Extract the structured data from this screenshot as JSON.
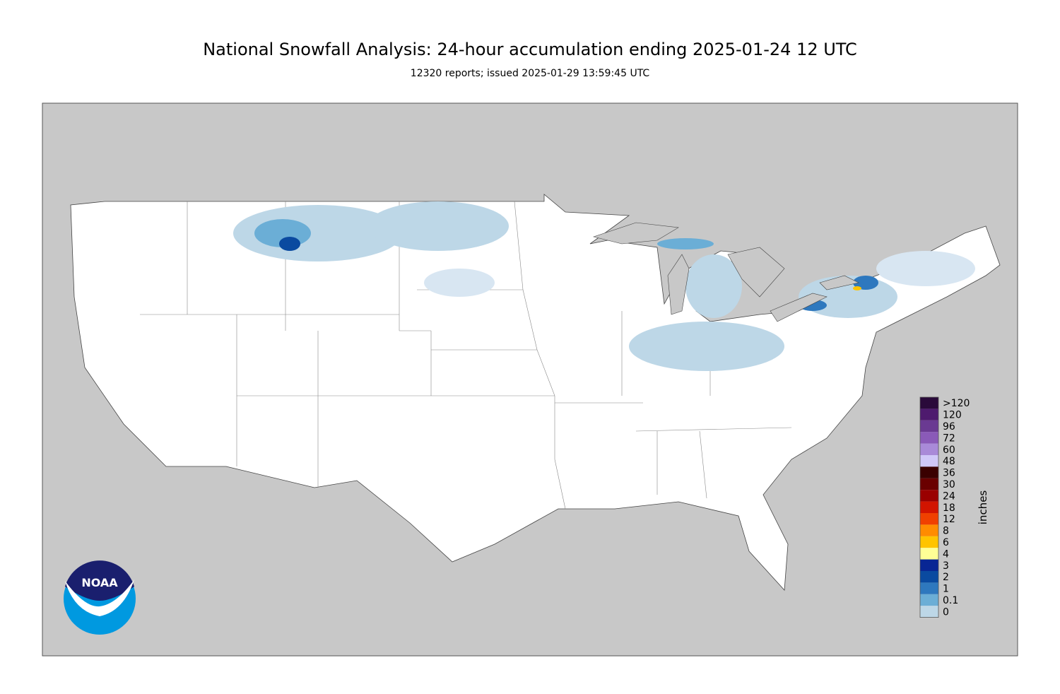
{
  "header": {
    "title": "National Snowfall Analysis: 24-hour accumulation ending 2025-01-24 12 UTC",
    "subtitle": "12320 reports; issued 2025-01-29 13:59:45 UTC"
  },
  "legend": {
    "label": "inches",
    "bins": [
      {
        "label": ">120",
        "color": "#2a0a3a"
      },
      {
        "label": "120",
        "color": "#4e1a6e"
      },
      {
        "label": "96",
        "color": "#6a3a92"
      },
      {
        "label": "72",
        "color": "#8a5ab8"
      },
      {
        "label": "60",
        "color": "#a98ad8"
      },
      {
        "label": "48",
        "color": "#d0c8f8"
      },
      {
        "label": "36",
        "color": "#3a0000"
      },
      {
        "label": "30",
        "color": "#6a0000"
      },
      {
        "label": "24",
        "color": "#9a0000"
      },
      {
        "label": "18",
        "color": "#d21400"
      },
      {
        "label": "12",
        "color": "#f04000"
      },
      {
        "label": "8",
        "color": "#ff8c00"
      },
      {
        "label": "6",
        "color": "#ffc400"
      },
      {
        "label": "4",
        "color": "#ffff96"
      },
      {
        "label": "3",
        "color": "#082694"
      },
      {
        "label": "2",
        "color": "#0a4aa0"
      },
      {
        "label": "1",
        "color": "#2e78be"
      },
      {
        "label": "0.1",
        "color": "#6baed6"
      },
      {
        "label": "0",
        "color": "#bdd7e7"
      }
    ]
  },
  "logo": {
    "text": "NOAA"
  }
}
